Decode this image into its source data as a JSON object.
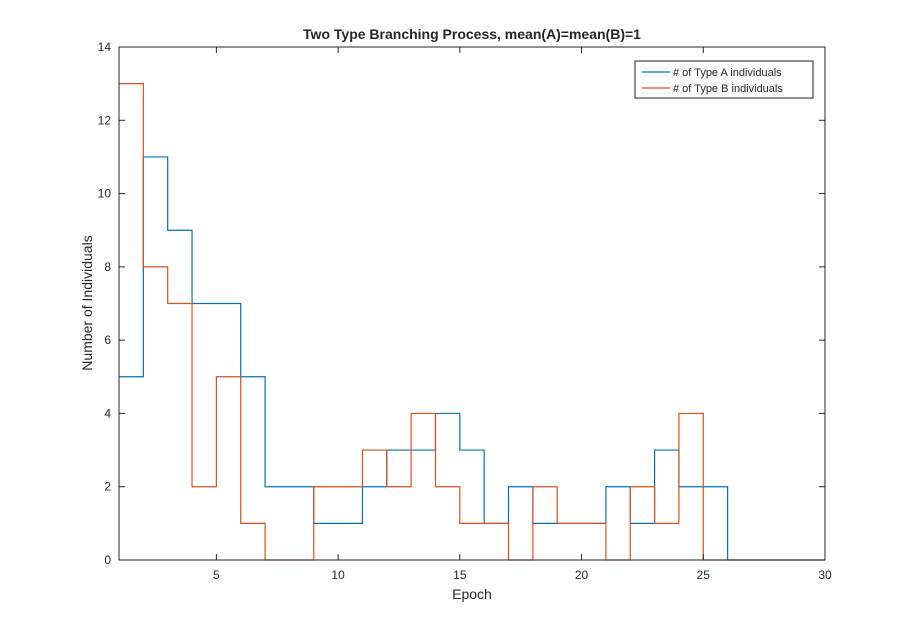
{
  "chart_data": {
    "type": "line",
    "step": "post",
    "title": "Two Type Branching Process, mean(A)=mean(B)=1",
    "xlabel": "Epoch",
    "ylabel": "Number of Individuals",
    "xlim": [
      1,
      30
    ],
    "ylim": [
      0,
      14
    ],
    "xticks": [
      5,
      10,
      15,
      20,
      25,
      30
    ],
    "yticks": [
      0,
      2,
      4,
      6,
      8,
      10,
      12,
      14
    ],
    "grid": false,
    "legend_position": "top-right",
    "x": [
      1,
      2,
      3,
      4,
      5,
      6,
      7,
      8,
      9,
      10,
      11,
      12,
      13,
      14,
      15,
      16,
      17,
      18,
      19,
      20,
      21,
      22,
      23,
      24,
      25,
      26,
      27,
      28,
      29,
      30
    ],
    "series": [
      {
        "name": "# of Type A individuals",
        "color": "#0072BD",
        "values": [
          5,
          11,
          9,
          7,
          7,
          5,
          2,
          2,
          1,
          1,
          2,
          3,
          3,
          4,
          3,
          1,
          2,
          1,
          1,
          1,
          2,
          1,
          3,
          2,
          2,
          0,
          0,
          0,
          0,
          0
        ]
      },
      {
        "name": "# of Type B individuals",
        "color": "#D95319",
        "values": [
          13,
          8,
          7,
          2,
          5,
          1,
          0,
          0,
          2,
          2,
          3,
          2,
          4,
          2,
          1,
          1,
          0,
          2,
          1,
          1,
          0,
          2,
          1,
          4,
          0,
          0,
          0,
          0,
          0,
          0
        ]
      }
    ]
  }
}
